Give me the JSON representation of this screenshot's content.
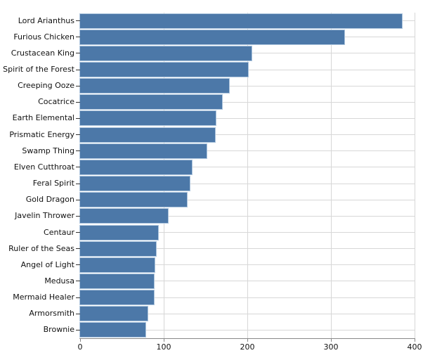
{
  "chart_data": {
    "type": "bar",
    "orientation": "horizontal",
    "title": "",
    "xlabel": "",
    "ylabel": "",
    "sort": "descending",
    "grid": true,
    "legend": "none",
    "xlim": [
      0,
      400
    ],
    "x_ticks": [
      0,
      100,
      200,
      300,
      400
    ],
    "x_tick_labels": [
      "0",
      "100",
      "200",
      "300",
      "400"
    ],
    "categories": [
      "Lord Arianthus",
      "Furious Chicken",
      "Crustacean King",
      "Spirit of the Forest",
      "Creeping Ooze",
      "Cocatrice",
      "Earth Elemental",
      "Prismatic Energy",
      "Swamp Thing",
      "Elven Cutthroat",
      "Feral Spirit",
      "Gold Dragon",
      "Javelin Thrower",
      "Centaur",
      "Ruler of the Seas",
      "Angel of Light",
      "Medusa",
      "Mermaid Healer",
      "Armorsmith",
      "Brownie"
    ],
    "values": [
      385,
      316,
      205,
      201,
      178,
      170,
      162,
      161,
      151,
      134,
      131,
      128,
      105,
      93,
      91,
      89,
      88,
      88,
      81,
      78
    ],
    "colors": {
      "bar": "#4c78a8",
      "bar_edge": "#aec6de",
      "grid": "#d7d7d7",
      "axis": "#888888",
      "y_tick": "#333333",
      "text": "#111111"
    }
  }
}
